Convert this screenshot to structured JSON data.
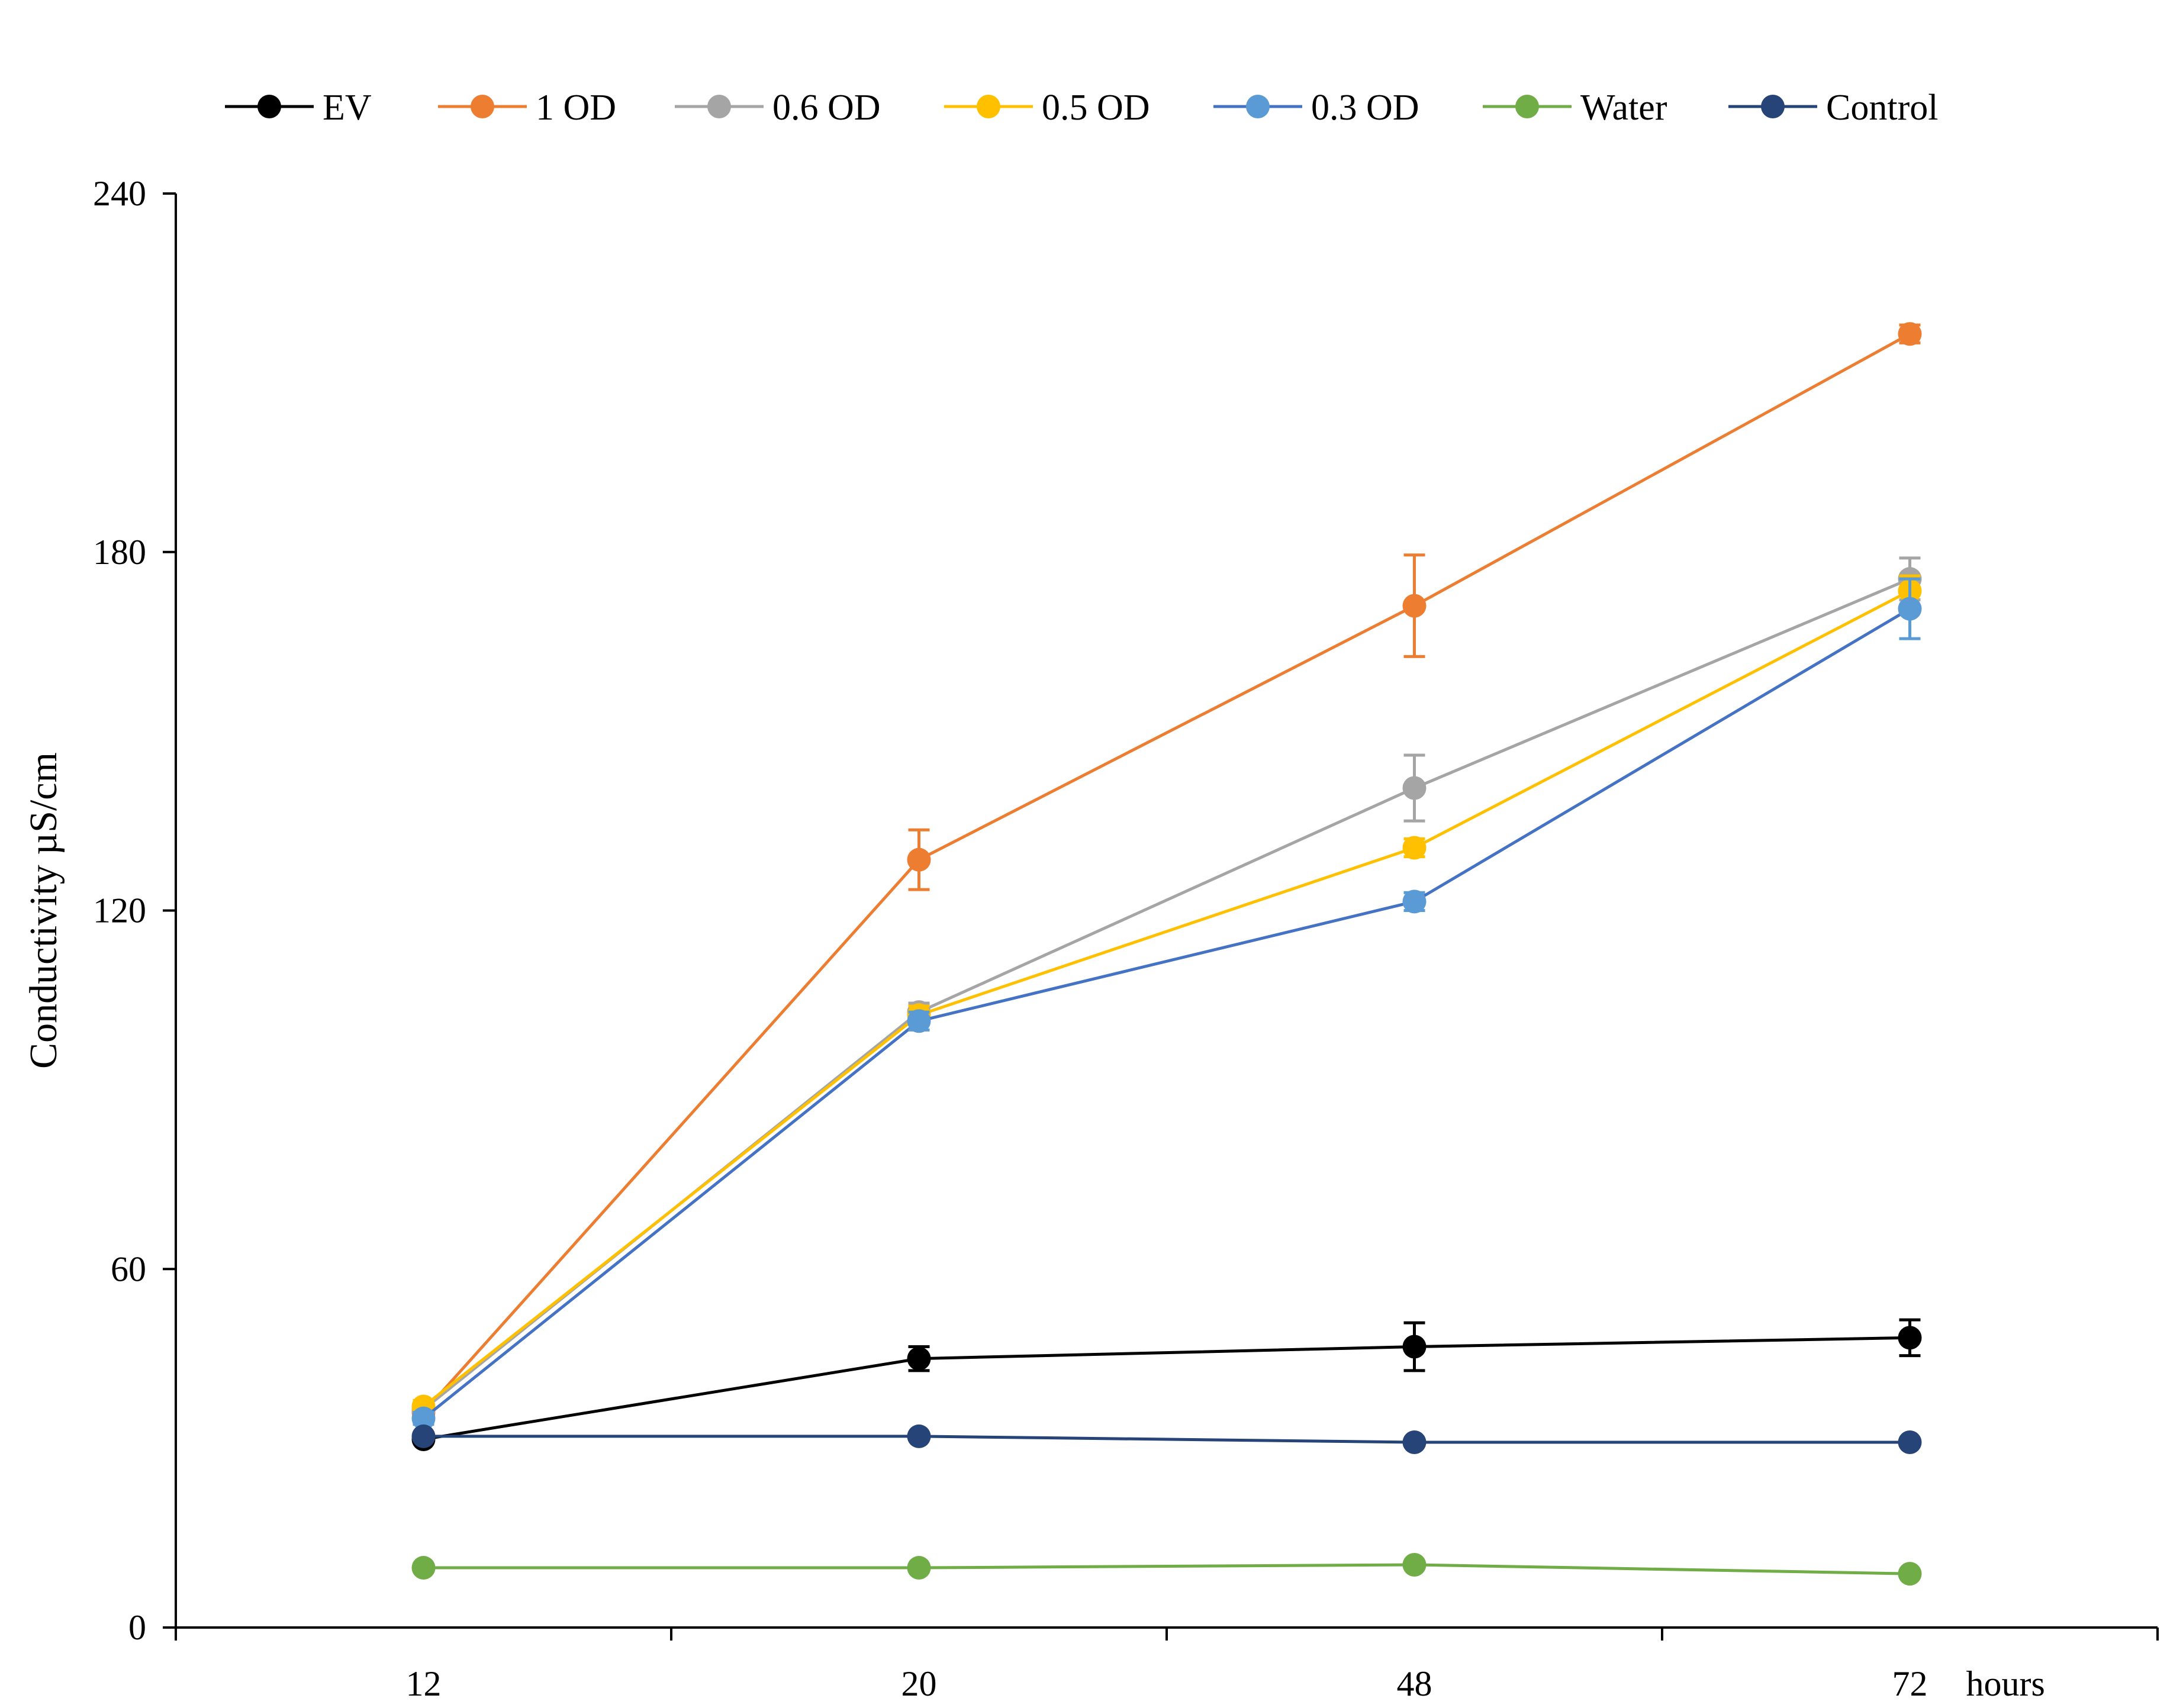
{
  "chart_data": {
    "type": "line",
    "title": "",
    "xlabel": "hours",
    "ylabel": "Conductivity µS/cm",
    "categories": [
      "12",
      "20",
      "48",
      "72"
    ],
    "ylim": [
      0,
      240
    ],
    "yticks": [
      0,
      60,
      120,
      180,
      240
    ],
    "grid": false,
    "legend_position": "top",
    "series": [
      {
        "name": "EV",
        "color": "#000000",
        "line_color": "#000000",
        "values": [
          31.5,
          45,
          47,
          48.5
        ],
        "errors": [
          0,
          2,
          4,
          3
        ]
      },
      {
        "name": "1 OD",
        "color": "#ED7D31",
        "line_color": "#ED7D31",
        "values": [
          36,
          128.5,
          171,
          216.5
        ],
        "errors": [
          1.5,
          5,
          8.5,
          1.5
        ]
      },
      {
        "name": "0.6 OD",
        "color": "#A5A5A5",
        "line_color": "#A5A5A5",
        "values": [
          36.5,
          103,
          140.5,
          175.5
        ],
        "errors": [
          1,
          1.5,
          5.5,
          3.5
        ]
      },
      {
        "name": "0.5 OD",
        "color": "#FFC000",
        "line_color": "#FFC000",
        "values": [
          37,
          102.5,
          130.5,
          173.5
        ],
        "errors": [
          1,
          1.5,
          1.5,
          2.5
        ]
      },
      {
        "name": "0.3 OD",
        "color": "#5B9BD5",
        "line_color": "#4472C4",
        "values": [
          35,
          101.5,
          121.5,
          170.5
        ],
        "errors": [
          1,
          1.5,
          1.5,
          5
        ]
      },
      {
        "name": "Water",
        "color": "#70AD47",
        "line_color": "#70AD47",
        "values": [
          10,
          10,
          10.5,
          9
        ],
        "errors": [
          0,
          0,
          0,
          0
        ]
      },
      {
        "name": "Control",
        "color": "#264478",
        "line_color": "#264478",
        "values": [
          32,
          32,
          31,
          31
        ],
        "errors": [
          0,
          0,
          0,
          0
        ]
      }
    ]
  }
}
